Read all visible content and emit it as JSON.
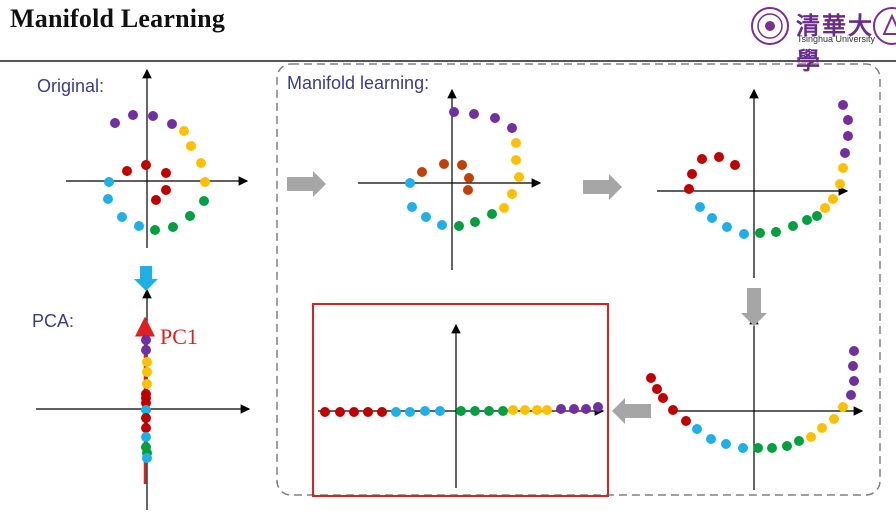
{
  "header": {
    "title": "Manifold Learning",
    "logo_text": "清華大學",
    "logo_subtitle": "Tsinghua University"
  },
  "labels": {
    "original": "Original:",
    "manifold": "Manifold learning:",
    "pca": "PCA:",
    "pc1": "PC1"
  },
  "colors": {
    "purple": "#7030a0",
    "yellow": "#ffc000",
    "red": "#c00000",
    "orange_red": "#c0400a",
    "blue": "#1fb0e8",
    "green": "#00a040",
    "arrow_gray": "#a6a6a6",
    "arrow_blue": "#1fb0e8",
    "highlight_red": "#e02020",
    "dashed_border": "#808080"
  },
  "icons": [
    "tsinghua-seal-icon",
    "university-emblem-icon"
  ]
}
